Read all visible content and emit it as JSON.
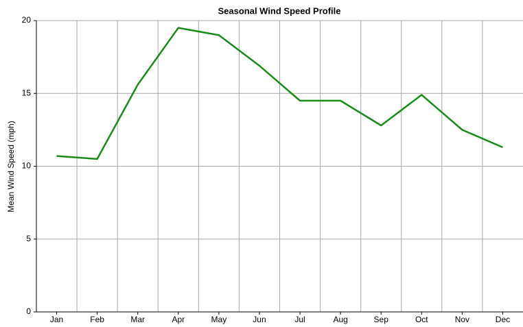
{
  "chart_data": {
    "type": "line",
    "title": "Seasonal Wind Speed Profile",
    "y_label": "Mean Wind Speed (mph)",
    "categories": [
      "Jan",
      "Feb",
      "Mar",
      "Apr",
      "May",
      "Jun",
      "Jul",
      "Aug",
      "Sep",
      "Oct",
      "Nov",
      "Dec"
    ],
    "series": [
      {
        "name": "Mean Wind Speed",
        "color": "#1a8a1a",
        "values": [
          10.7,
          10.5,
          15.6,
          19.5,
          19.0,
          16.9,
          14.5,
          14.5,
          12.8,
          14.9,
          12.5,
          11.3
        ]
      }
    ],
    "ylim": [
      0,
      20
    ],
    "yticks": [
      0,
      5,
      10,
      15,
      20
    ],
    "grid": true
  }
}
